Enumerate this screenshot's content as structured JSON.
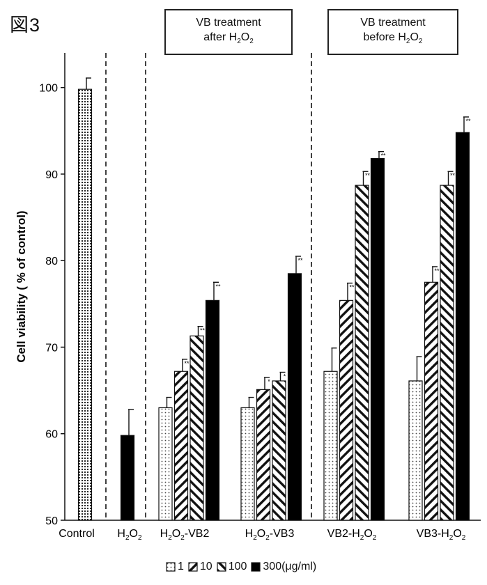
{
  "figure_label": "図3",
  "groups": {
    "after": {
      "line1": "VB treatment",
      "line2_pre": "after H",
      "line2_sub1": "2",
      "line2_mid": "O",
      "line2_sub2": "2"
    },
    "before": {
      "line1": "VB treatment",
      "line2_pre": "before H",
      "line2_sub1": "2",
      "line2_mid": "O",
      "line2_sub2": "2"
    }
  },
  "legend": {
    "items": [
      "1",
      "10",
      "100",
      "300(μg/ml)"
    ]
  },
  "colors": {
    "bar_outline": "#111111",
    "solid": "#000000",
    "background": "#ffffff"
  },
  "chart_data": {
    "type": "bar",
    "ylabel": "Cell viability ( % of control)",
    "ylim": [
      50,
      104
    ],
    "yticks": [
      50,
      60,
      70,
      80,
      90,
      100
    ],
    "categories": [
      "Control",
      "H2O2",
      "H2O2-VB2",
      "H2O2-VB3",
      "VB2-H2O2",
      "VB3-H2O2"
    ],
    "category_labels": [
      {
        "text": "Control"
      },
      {
        "pre": "H",
        "sub1": "2",
        "mid": "O",
        "sub2": "2",
        "post": ""
      },
      {
        "pre": "H",
        "sub1": "2",
        "mid": "O",
        "sub2": "2",
        "post": "-VB2"
      },
      {
        "pre": "H",
        "sub1": "2",
        "mid": "O",
        "sub2": "2",
        "post": "-VB3"
      },
      {
        "pre": "VB2-H",
        "sub1": "2",
        "mid": "O",
        "sub2": "2",
        "post": ""
      },
      {
        "pre": "VB3-H",
        "sub1": "2",
        "mid": "O",
        "sub2": "2",
        "post": ""
      }
    ],
    "series": [
      {
        "name": "1",
        "pattern": "dots-light",
        "values": [
          null,
          null,
          63.0,
          63.0,
          67.2,
          66.1
        ]
      },
      {
        "name": "10",
        "pattern": "hatch-forward",
        "values": [
          null,
          null,
          67.2,
          65.1,
          75.4,
          77.5
        ]
      },
      {
        "name": "100",
        "pattern": "hatch-back",
        "values": [
          null,
          null,
          71.3,
          66.1,
          88.7,
          88.7
        ]
      },
      {
        "name": "300(μg/ml)",
        "pattern": "solid",
        "values": [
          null,
          null,
          75.4,
          78.5,
          91.8,
          94.8
        ]
      }
    ],
    "single_bars": [
      {
        "category": "Control",
        "value": 99.8,
        "error": 1.3,
        "pattern": "dots-dense"
      },
      {
        "category": "H2O2",
        "value": 59.8,
        "error": 3.0,
        "pattern": "solid"
      }
    ],
    "errors": [
      [
        null,
        null,
        1.2,
        1.2,
        2.7,
        2.8
      ],
      [
        null,
        null,
        1.4,
        1.4,
        2.0,
        1.8
      ],
      [
        null,
        null,
        1.1,
        1.0,
        1.6,
        1.6
      ],
      [
        null,
        null,
        2.1,
        2.0,
        0.8,
        1.8
      ]
    ],
    "significance": [
      [
        null,
        null,
        "",
        "",
        "",
        ""
      ],
      [
        null,
        null,
        "**",
        "*",
        "**",
        "**"
      ],
      [
        null,
        null,
        "**",
        "*",
        "**",
        "**"
      ],
      [
        null,
        null,
        "**",
        "**",
        "**",
        "**"
      ]
    ],
    "grid": false,
    "legend_position": "bottom"
  }
}
